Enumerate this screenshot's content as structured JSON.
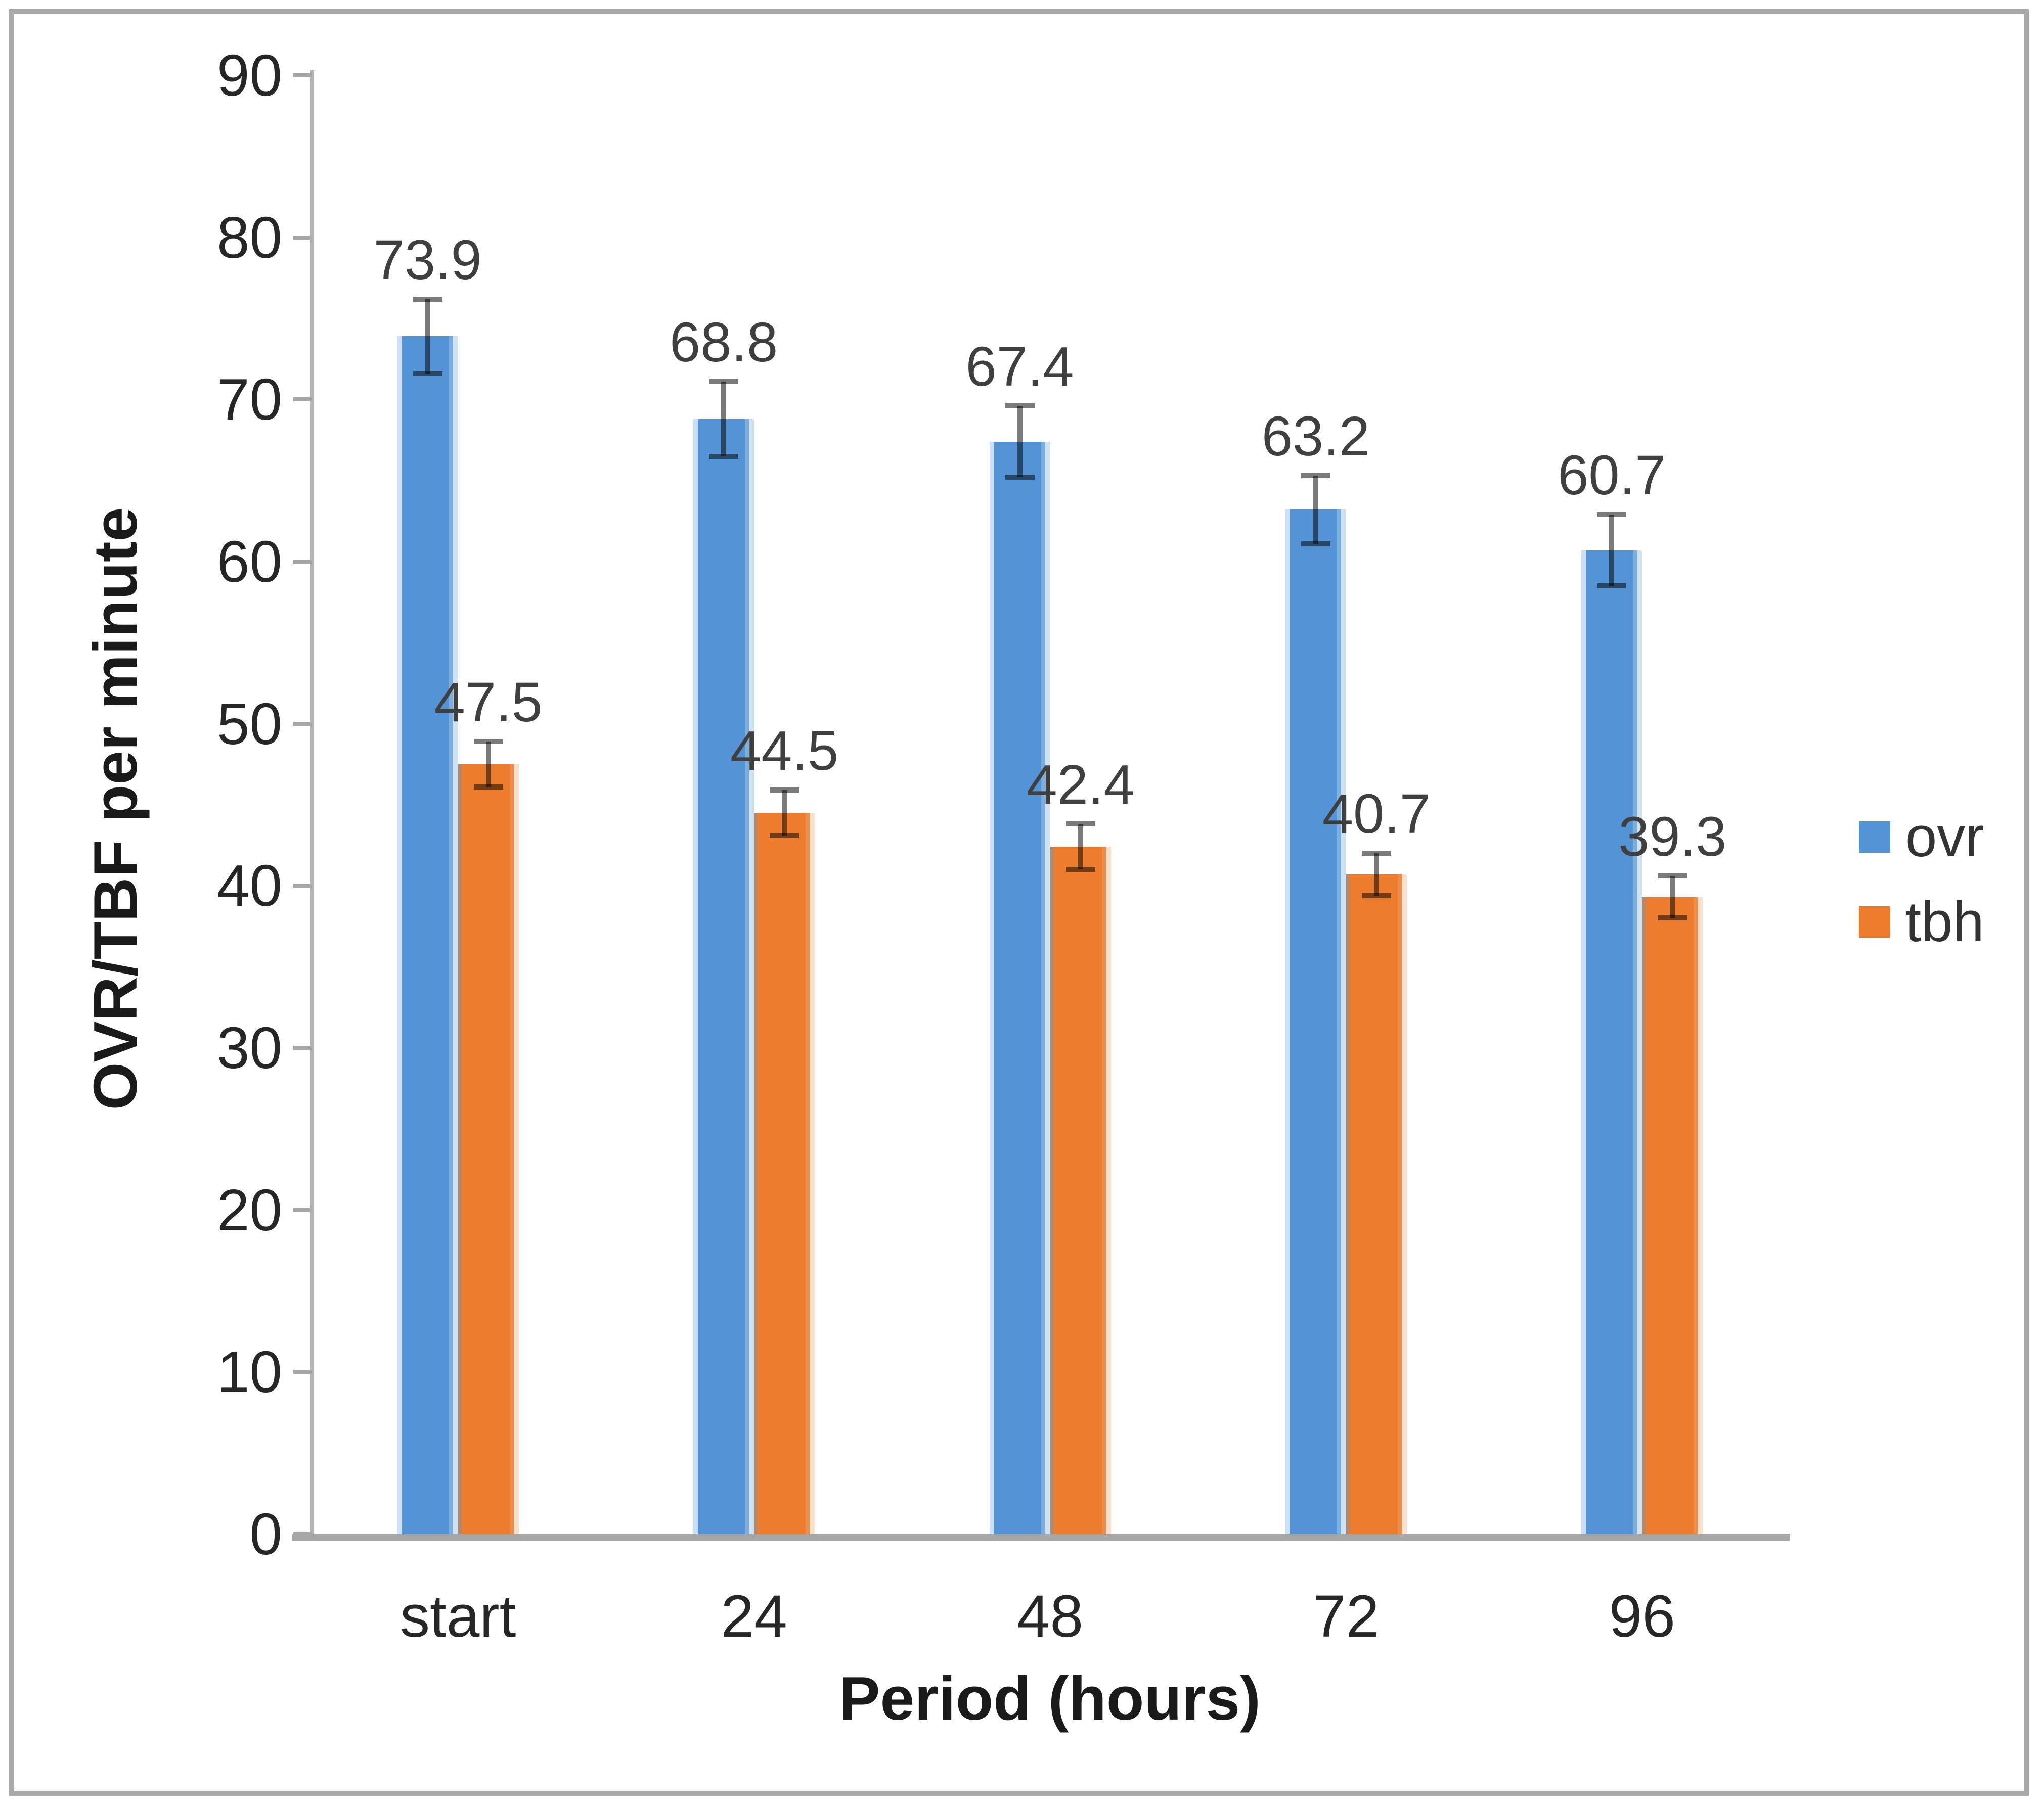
{
  "figure": {
    "background": "#ffffff",
    "border_color": "#a9a9a9"
  },
  "chart_data": {
    "type": "bar",
    "title": "",
    "xlabel": "Period (hours)",
    "ylabel": "OVR/TBF per minute",
    "categories": [
      "start",
      "24",
      "48",
      "72",
      "96"
    ],
    "series": [
      {
        "name": "ovr",
        "color": "#5494d6",
        "values": [
          73.9,
          68.8,
          67.4,
          63.2,
          60.7
        ],
        "errors": [
          2.3,
          2.3,
          2.2,
          2.1,
          2.2
        ]
      },
      {
        "name": "tbh",
        "color": "#ee7c2f",
        "values": [
          47.5,
          44.5,
          42.4,
          40.7,
          39.3
        ],
        "errors": [
          1.4,
          1.4,
          1.4,
          1.3,
          1.3
        ]
      }
    ],
    "data_labels": {
      "ovr": [
        "73.9",
        "68.8",
        "67.4",
        "63.2",
        "60.7"
      ],
      "tbh": [
        "47.5",
        "44.5",
        "42.4",
        "40.7",
        "39.3"
      ]
    },
    "ylim": [
      0,
      90
    ],
    "yticks": [
      0,
      10,
      20,
      30,
      40,
      50,
      60,
      70,
      80,
      90
    ],
    "grid": false,
    "error_bars": true,
    "legend_position": "right",
    "legend_labels": [
      "ovr",
      "tbh"
    ]
  }
}
